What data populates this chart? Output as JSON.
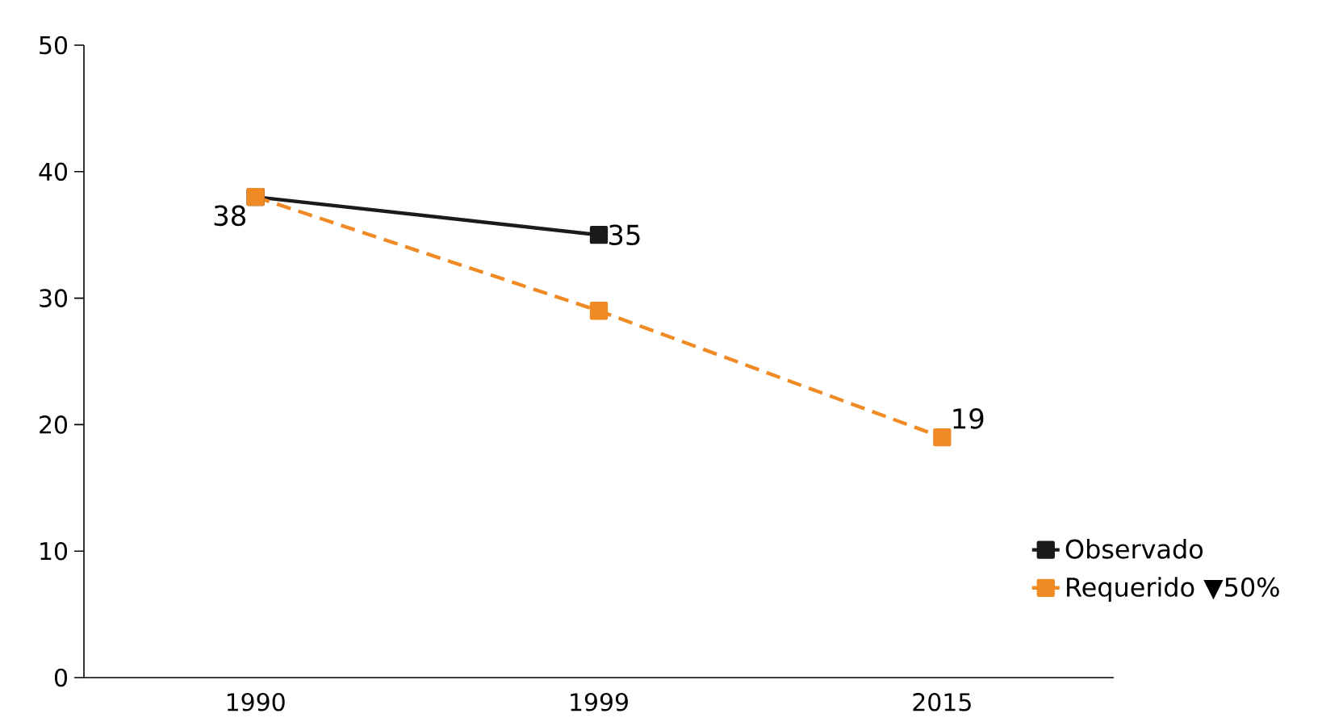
{
  "chart_data": {
    "type": "line",
    "categories": [
      "1990",
      "1999",
      "2015"
    ],
    "series": [
      {
        "name": "Observado",
        "color": "#1a1a1a",
        "values": [
          38,
          35,
          null
        ],
        "line_style": "solid",
        "value_labels": [
          "38",
          "35",
          null
        ]
      },
      {
        "name": "Requerido ▼50%",
        "color": "#f08a24",
        "values": [
          38,
          29,
          19
        ],
        "line_style": "dashed",
        "value_labels": [
          null,
          null,
          "19"
        ]
      }
    ],
    "ylim": [
      0,
      50
    ],
    "yticks": [
      0,
      10,
      20,
      30,
      40,
      50
    ],
    "marker": "square",
    "legend": "bottom right",
    "grid": false
  }
}
